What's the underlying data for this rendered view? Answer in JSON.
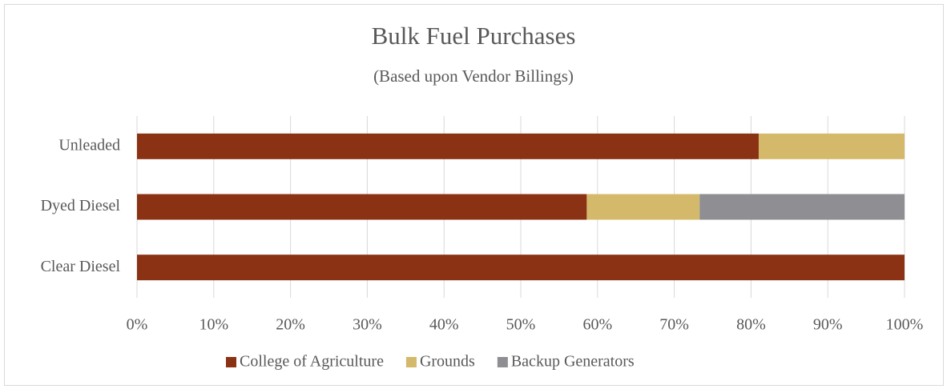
{
  "chart_data": {
    "type": "stacked-bar-horizontal",
    "title": "Bulk Fuel Purchases",
    "subtitle": "(Based upon Vendor Billings)",
    "categories": [
      "Unleaded",
      "Dyed Diesel",
      "Clear Diesel"
    ],
    "series": [
      {
        "name": "College of Agriculture",
        "color": "#8b3214",
        "values": [
          81,
          58.6,
          100
        ]
      },
      {
        "name": "Grounds",
        "color": "#d4b96a",
        "values": [
          19,
          14.7,
          0
        ]
      },
      {
        "name": "Backup Generators",
        "color": "#8e8e93",
        "values": [
          0,
          26.7,
          0
        ]
      }
    ],
    "xlim": [
      0,
      100
    ],
    "xticks": [
      {
        "value": 0,
        "label": "0%"
      },
      {
        "value": 10,
        "label": "10%"
      },
      {
        "value": 20,
        "label": "20%"
      },
      {
        "value": 30,
        "label": "30%"
      },
      {
        "value": 40,
        "label": "40%"
      },
      {
        "value": 50,
        "label": "50%"
      },
      {
        "value": 60,
        "label": "60%"
      },
      {
        "value": 70,
        "label": "70%"
      },
      {
        "value": 80,
        "label": "80%"
      },
      {
        "value": 90,
        "label": "90%"
      },
      {
        "value": 100,
        "label": "100%"
      }
    ],
    "grid": true,
    "legend": "bottom"
  }
}
